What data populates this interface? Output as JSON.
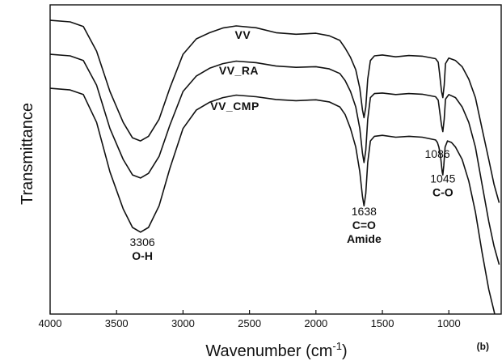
{
  "chart_data": {
    "type": "line",
    "title": "",
    "xlabel": "Wavenumber (cm",
    "xlabel_sup": "-1",
    "xlabel_end": ")",
    "ylabel": "Transmittance",
    "xlim": [
      4000,
      600
    ],
    "ylim": [
      0,
      100
    ],
    "x_reversed": true,
    "x_ticks": [
      4000,
      3500,
      3000,
      2500,
      2000,
      1500,
      1000
    ],
    "y_ticks_shown": false,
    "grid": false,
    "legend": "none",
    "panel_label": "(b)",
    "series": [
      {
        "name": "VV",
        "points": [
          [
            4000,
            95
          ],
          [
            3850,
            94.5
          ],
          [
            3750,
            93
          ],
          [
            3650,
            85
          ],
          [
            3550,
            72
          ],
          [
            3450,
            62
          ],
          [
            3380,
            57
          ],
          [
            3320,
            56
          ],
          [
            3260,
            57.5
          ],
          [
            3180,
            63
          ],
          [
            3100,
            73
          ],
          [
            3000,
            84
          ],
          [
            2900,
            89
          ],
          [
            2800,
            91
          ],
          [
            2700,
            92.5
          ],
          [
            2600,
            93.2
          ],
          [
            2450,
            92.6
          ],
          [
            2300,
            91
          ],
          [
            2150,
            90.5
          ],
          [
            2000,
            90.8
          ],
          [
            1900,
            90
          ],
          [
            1820,
            88.5
          ],
          [
            1780,
            86
          ],
          [
            1740,
            83
          ],
          [
            1700,
            79
          ],
          [
            1670,
            73
          ],
          [
            1650,
            66
          ],
          [
            1638,
            63.5
          ],
          [
            1625,
            67
          ],
          [
            1610,
            76
          ],
          [
            1590,
            82
          ],
          [
            1560,
            83.5
          ],
          [
            1500,
            83.8
          ],
          [
            1400,
            83.2
          ],
          [
            1300,
            83.6
          ],
          [
            1200,
            83.4
          ],
          [
            1100,
            82.6
          ],
          [
            1080,
            81.5
          ],
          [
            1070,
            78
          ],
          [
            1055,
            72
          ],
          [
            1045,
            70
          ],
          [
            1035,
            74
          ],
          [
            1025,
            81
          ],
          [
            1000,
            82.8
          ],
          [
            950,
            82
          ],
          [
            900,
            80
          ],
          [
            850,
            76
          ],
          [
            800,
            70
          ],
          [
            750,
            60
          ],
          [
            700,
            50
          ],
          [
            660,
            42
          ],
          [
            621,
            36
          ]
        ]
      },
      {
        "name": "VV_RA",
        "points": [
          [
            4000,
            84
          ],
          [
            3850,
            83.5
          ],
          [
            3750,
            82
          ],
          [
            3650,
            74
          ],
          [
            3550,
            60
          ],
          [
            3450,
            50
          ],
          [
            3380,
            45
          ],
          [
            3320,
            44
          ],
          [
            3260,
            45.5
          ],
          [
            3180,
            51
          ],
          [
            3100,
            61
          ],
          [
            3000,
            72
          ],
          [
            2900,
            77
          ],
          [
            2800,
            79.5
          ],
          [
            2700,
            81
          ],
          [
            2600,
            81.8
          ],
          [
            2450,
            81.3
          ],
          [
            2300,
            80.2
          ],
          [
            2150,
            79.8
          ],
          [
            2000,
            80
          ],
          [
            1900,
            79.3
          ],
          [
            1820,
            77.8
          ],
          [
            1780,
            75.5
          ],
          [
            1740,
            72
          ],
          [
            1700,
            67
          ],
          [
            1670,
            60
          ],
          [
            1650,
            52
          ],
          [
            1638,
            49
          ],
          [
            1625,
            53
          ],
          [
            1610,
            63
          ],
          [
            1590,
            70
          ],
          [
            1560,
            71.3
          ],
          [
            1500,
            71.5
          ],
          [
            1400,
            71
          ],
          [
            1300,
            71.3
          ],
          [
            1200,
            71.1
          ],
          [
            1100,
            70.3
          ],
          [
            1080,
            69.2
          ],
          [
            1070,
            66
          ],
          [
            1055,
            61
          ],
          [
            1045,
            59
          ],
          [
            1035,
            63
          ],
          [
            1025,
            69.5
          ],
          [
            1000,
            71
          ],
          [
            950,
            70
          ],
          [
            900,
            67
          ],
          [
            850,
            62
          ],
          [
            800,
            54
          ],
          [
            750,
            42
          ],
          [
            700,
            30
          ],
          [
            660,
            22
          ],
          [
            621,
            16
          ]
        ]
      },
      {
        "name": "VV_CMP",
        "points": [
          [
            4000,
            73
          ],
          [
            3850,
            72.5
          ],
          [
            3750,
            71
          ],
          [
            3650,
            62
          ],
          [
            3550,
            46
          ],
          [
            3450,
            34
          ],
          [
            3380,
            28
          ],
          [
            3320,
            26.5
          ],
          [
            3260,
            28
          ],
          [
            3180,
            35
          ],
          [
            3100,
            47
          ],
          [
            3000,
            60
          ],
          [
            2900,
            66
          ],
          [
            2800,
            68.5
          ],
          [
            2700,
            70
          ],
          [
            2600,
            70.8
          ],
          [
            2450,
            70.3
          ],
          [
            2300,
            69.4
          ],
          [
            2150,
            69
          ],
          [
            2000,
            69.3
          ],
          [
            1900,
            68.6
          ],
          [
            1820,
            67
          ],
          [
            1780,
            64.5
          ],
          [
            1740,
            60
          ],
          [
            1700,
            54
          ],
          [
            1670,
            46
          ],
          [
            1650,
            38
          ],
          [
            1638,
            35
          ],
          [
            1625,
            39
          ],
          [
            1610,
            49
          ],
          [
            1590,
            56
          ],
          [
            1560,
            57.5
          ],
          [
            1500,
            57.8
          ],
          [
            1400,
            57.2
          ],
          [
            1300,
            57.5
          ],
          [
            1200,
            57.2
          ],
          [
            1100,
            56.3
          ],
          [
            1086,
            55.5
          ],
          [
            1075,
            54
          ],
          [
            1062,
            51
          ],
          [
            1050,
            46
          ],
          [
            1045,
            45
          ],
          [
            1038,
            48
          ],
          [
            1028,
            54
          ],
          [
            1010,
            56
          ],
          [
            980,
            55.5
          ],
          [
            950,
            54
          ],
          [
            900,
            50
          ],
          [
            850,
            43
          ],
          [
            800,
            33
          ],
          [
            750,
            20
          ],
          [
            700,
            8
          ],
          [
            660,
            1
          ],
          [
            640,
            -3
          ]
        ]
      }
    ],
    "series_labels": [
      {
        "text": "VV",
        "x": 2550,
        "y": 89
      },
      {
        "text": "VV_RA",
        "x": 2580,
        "y": 77.5
      },
      {
        "text": "VV_CMP",
        "x": 2610,
        "y": 66
      }
    ],
    "annotations": [
      {
        "lines": [
          "3306",
          "O-H"
        ],
        "x": 3306,
        "y": 22,
        "bold": [
          false,
          true
        ]
      },
      {
        "lines": [
          "1638",
          "C=O",
          "Amide"
        ],
        "x": 1638,
        "y": 32,
        "bold": [
          false,
          true,
          true
        ]
      },
      {
        "lines": [
          "1086"
        ],
        "x": 1086,
        "y": 50.5,
        "bold": [
          false
        ]
      },
      {
        "lines": [
          "1045",
          "C-O"
        ],
        "x": 1045,
        "y": 42.5,
        "bold": [
          false,
          true
        ]
      }
    ]
  }
}
